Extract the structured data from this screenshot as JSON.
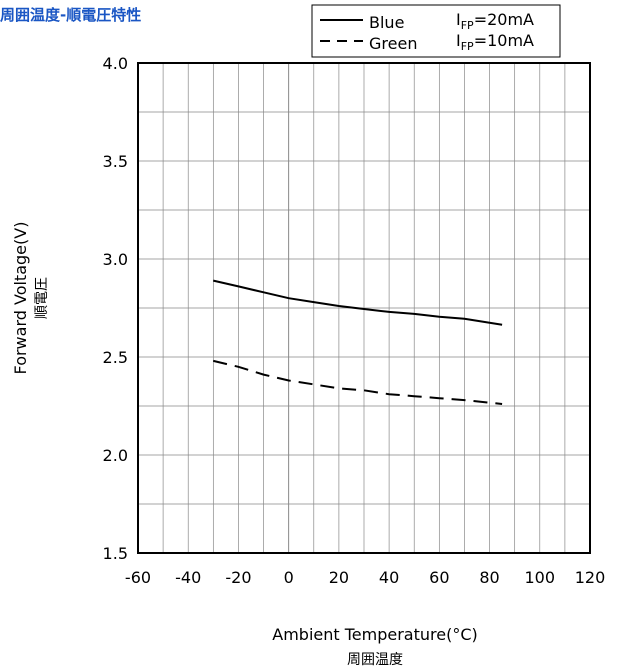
{
  "page": {
    "title": "周囲温度-順電圧特性"
  },
  "chart_data": {
    "type": "line",
    "title": "周囲温度-順電圧特性",
    "xlabel": "Ambient Temperature(°C)",
    "xlabel_sub": "周囲温度",
    "ylabel": "Forward Voltage(V)",
    "ylabel_sub": "順電圧",
    "xlim": [
      -60,
      120
    ],
    "ylim": [
      1.5,
      4.0
    ],
    "x_ticks": [
      "-60",
      "-40",
      "-20",
      "0",
      "20",
      "40",
      "60",
      "80",
      "100",
      "120"
    ],
    "y_ticks": [
      "1.5",
      "2.0",
      "2.5",
      "3.0",
      "3.5",
      "4.0"
    ],
    "grid": true,
    "legend_position": "top-right",
    "series": [
      {
        "name": "Blue",
        "condition": "IFP=20mA",
        "condition_main": "I",
        "condition_sub": "FP",
        "condition_value": "=20mA",
        "style": "solid",
        "color": "#000000",
        "x": [
          -30,
          -20,
          -10,
          0,
          10,
          20,
          30,
          40,
          50,
          60,
          70,
          85
        ],
        "y": [
          2.89,
          2.86,
          2.83,
          2.8,
          2.78,
          2.76,
          2.745,
          2.73,
          2.72,
          2.705,
          2.695,
          2.665
        ]
      },
      {
        "name": "Green",
        "condition": "IFP=10mA",
        "condition_main": "I",
        "condition_sub": "FP",
        "condition_value": "=10mA",
        "style": "dashed",
        "color": "#000000",
        "x": [
          -30,
          -20,
          -10,
          0,
          10,
          20,
          30,
          40,
          50,
          60,
          70,
          85
        ],
        "y": [
          2.48,
          2.45,
          2.41,
          2.38,
          2.36,
          2.34,
          2.33,
          2.31,
          2.3,
          2.29,
          2.28,
          2.26
        ]
      }
    ]
  }
}
